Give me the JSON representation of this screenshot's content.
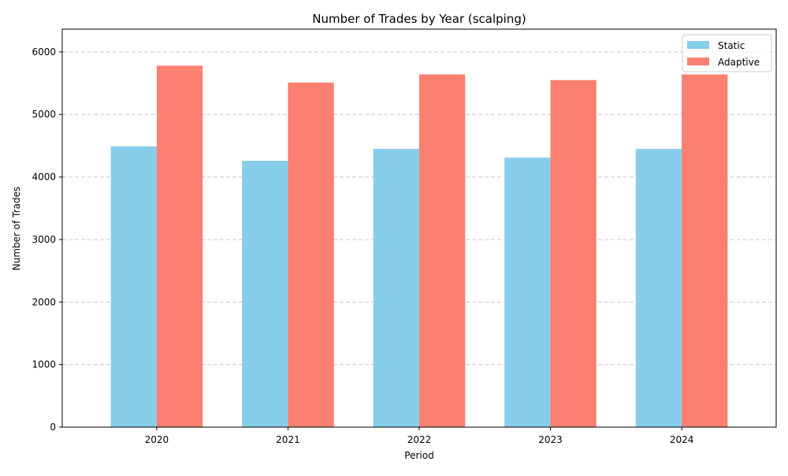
{
  "chart_data": {
    "type": "bar",
    "title": "Number of Trades by Year (scalping)",
    "xlabel": "Period",
    "ylabel": "Number of Trades",
    "categories": [
      "2020",
      "2021",
      "2022",
      "2023",
      "2024"
    ],
    "series": [
      {
        "name": "Static",
        "values": [
          4490,
          4260,
          4450,
          4310,
          4450
        ],
        "color": "#87CEEB"
      },
      {
        "name": "Adaptive",
        "values": [
          5780,
          5510,
          5640,
          5550,
          5640
        ],
        "color": "#FA8072"
      }
    ],
    "ylim": [
      0,
      6000
    ],
    "yticks": [
      0,
      1000,
      2000,
      3000,
      4000,
      5000,
      6000
    ],
    "grid": true,
    "grid_axis": "y",
    "legend_position": "top-right"
  }
}
